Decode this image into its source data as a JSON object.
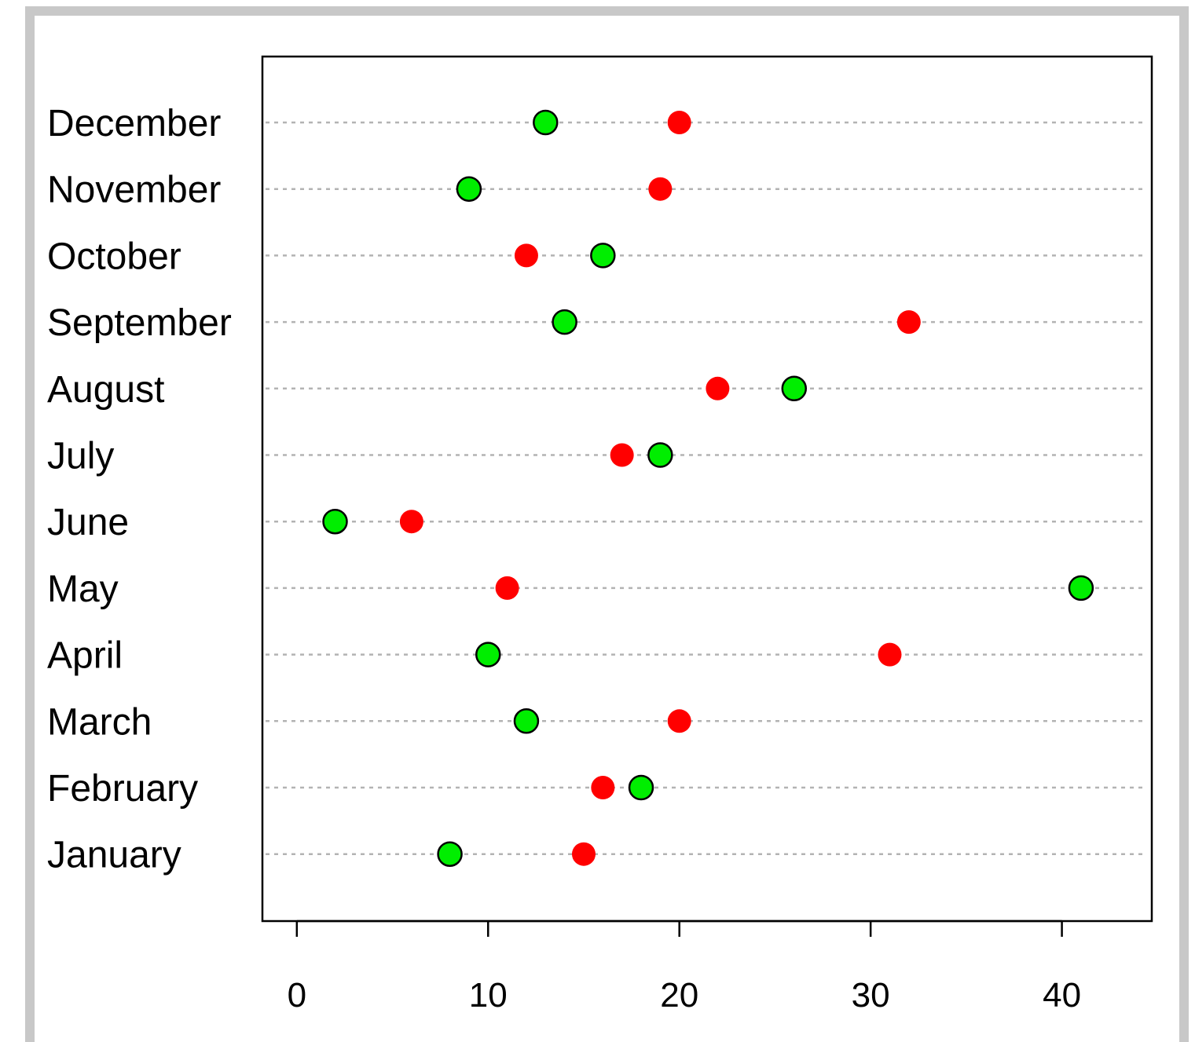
{
  "chart_data": {
    "type": "scatter",
    "subtype": "dot-plot",
    "title": "",
    "xlabel": "",
    "ylabel": "",
    "xlim": [
      -1.8,
      44.7
    ],
    "x_ticks": [
      0,
      10,
      20,
      30,
      40
    ],
    "x_tick_labels": [
      "0",
      "10",
      "20",
      "30",
      "40"
    ],
    "grid": "horizontal dashed lines at each category",
    "legend": "none",
    "categories": [
      "January",
      "February",
      "March",
      "April",
      "May",
      "June",
      "July",
      "August",
      "September",
      "October",
      "November",
      "December"
    ],
    "series": [
      {
        "color": "#ff0000",
        "outlined": false,
        "values": [
          15,
          16,
          20,
          31,
          11,
          6,
          17,
          22,
          32,
          12,
          19,
          20
        ]
      },
      {
        "color": "#00ee00",
        "outlined": true,
        "values": [
          8,
          18,
          12,
          10,
          41,
          2,
          19,
          26,
          14,
          16,
          9,
          13
        ]
      }
    ]
  }
}
